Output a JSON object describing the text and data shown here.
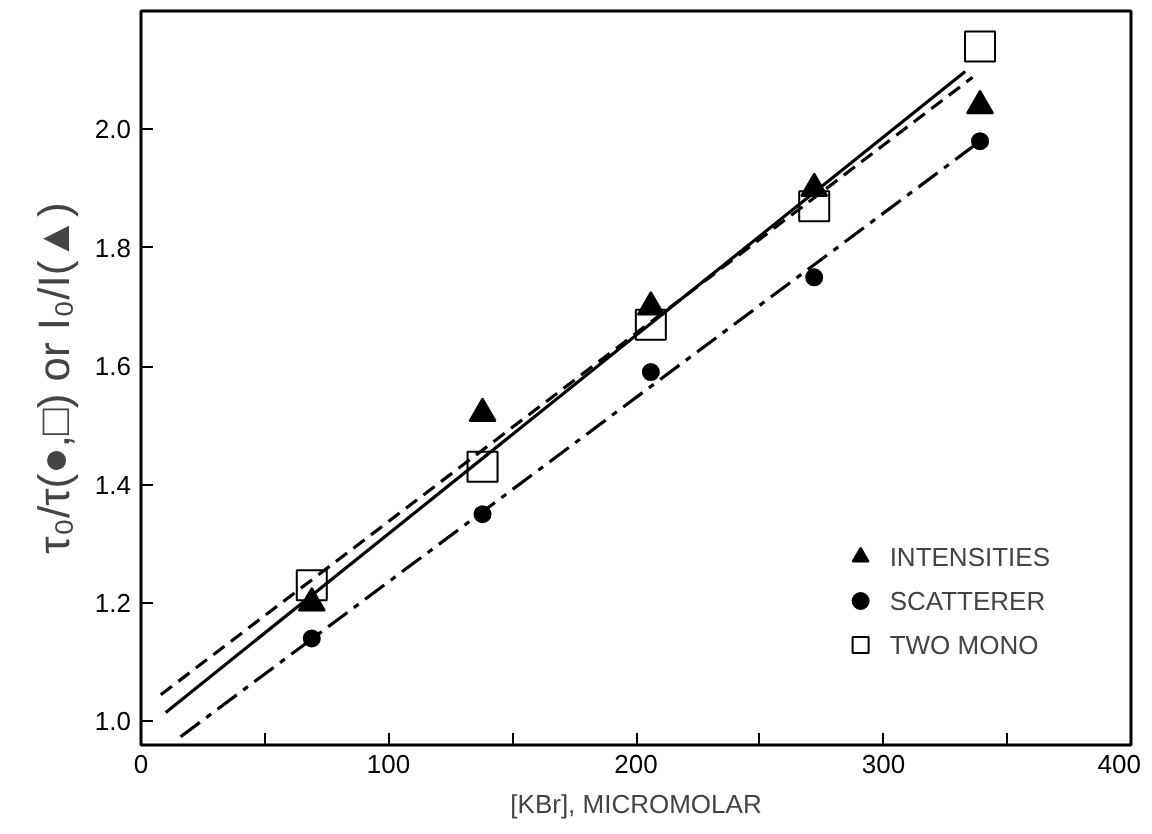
{
  "chart_data": {
    "type": "scatter",
    "xlabel": "[KBr], MICROMOLAR",
    "ylabel": "τ₀/τ(●,□) or I₀/I(▲)",
    "x": [
      69,
      138,
      206,
      272,
      339
    ],
    "xlim": [
      0,
      400
    ],
    "ylim": [
      0.96,
      2.2
    ],
    "xticks": [
      0,
      {
        "value": 50,
        "label": null
      },
      100,
      {
        "value": 150,
        "label": null
      },
      200,
      {
        "value": 250,
        "label": null
      },
      300,
      {
        "value": 350,
        "label": null
      },
      400
    ],
    "yticks": [
      {
        "value": 1.0,
        "label": "1.0"
      },
      1.2,
      1.4,
      1.6,
      1.8,
      {
        "value": 2.0,
        "label": "2.0"
      }
    ],
    "grid": false,
    "legend": "bottom right",
    "series": [
      {
        "name": "INTENSITIES",
        "color": "#000000",
        "marker": "triangle",
        "values": [
          1.2,
          1.52,
          1.7,
          1.9,
          2.04
        ]
      },
      {
        "name": "SCATTERER",
        "color": "#000000",
        "marker": "circle",
        "values": [
          1.14,
          1.35,
          1.59,
          1.75,
          1.98
        ]
      },
      {
        "name": "TWO MONO",
        "color": "#000000",
        "marker": "square",
        "values": [
          1.23,
          1.43,
          1.67,
          1.87,
          2.14
        ]
      },
      {
        "type": "line",
        "color": "#000000",
        "line_style": "solid",
        "x": [
          10,
          333
        ],
        "values": [
          1.015,
          2.098
        ]
      },
      {
        "type": "line",
        "color": "#000000",
        "line_style": "dashed",
        "x": [
          8,
          336
        ],
        "values": [
          1.045,
          2.088
        ]
      },
      {
        "type": "line",
        "color": "#000000",
        "line_style": "dashdot",
        "x": [
          16,
          339
        ],
        "values": [
          0.974,
          1.98
        ]
      }
    ]
  }
}
